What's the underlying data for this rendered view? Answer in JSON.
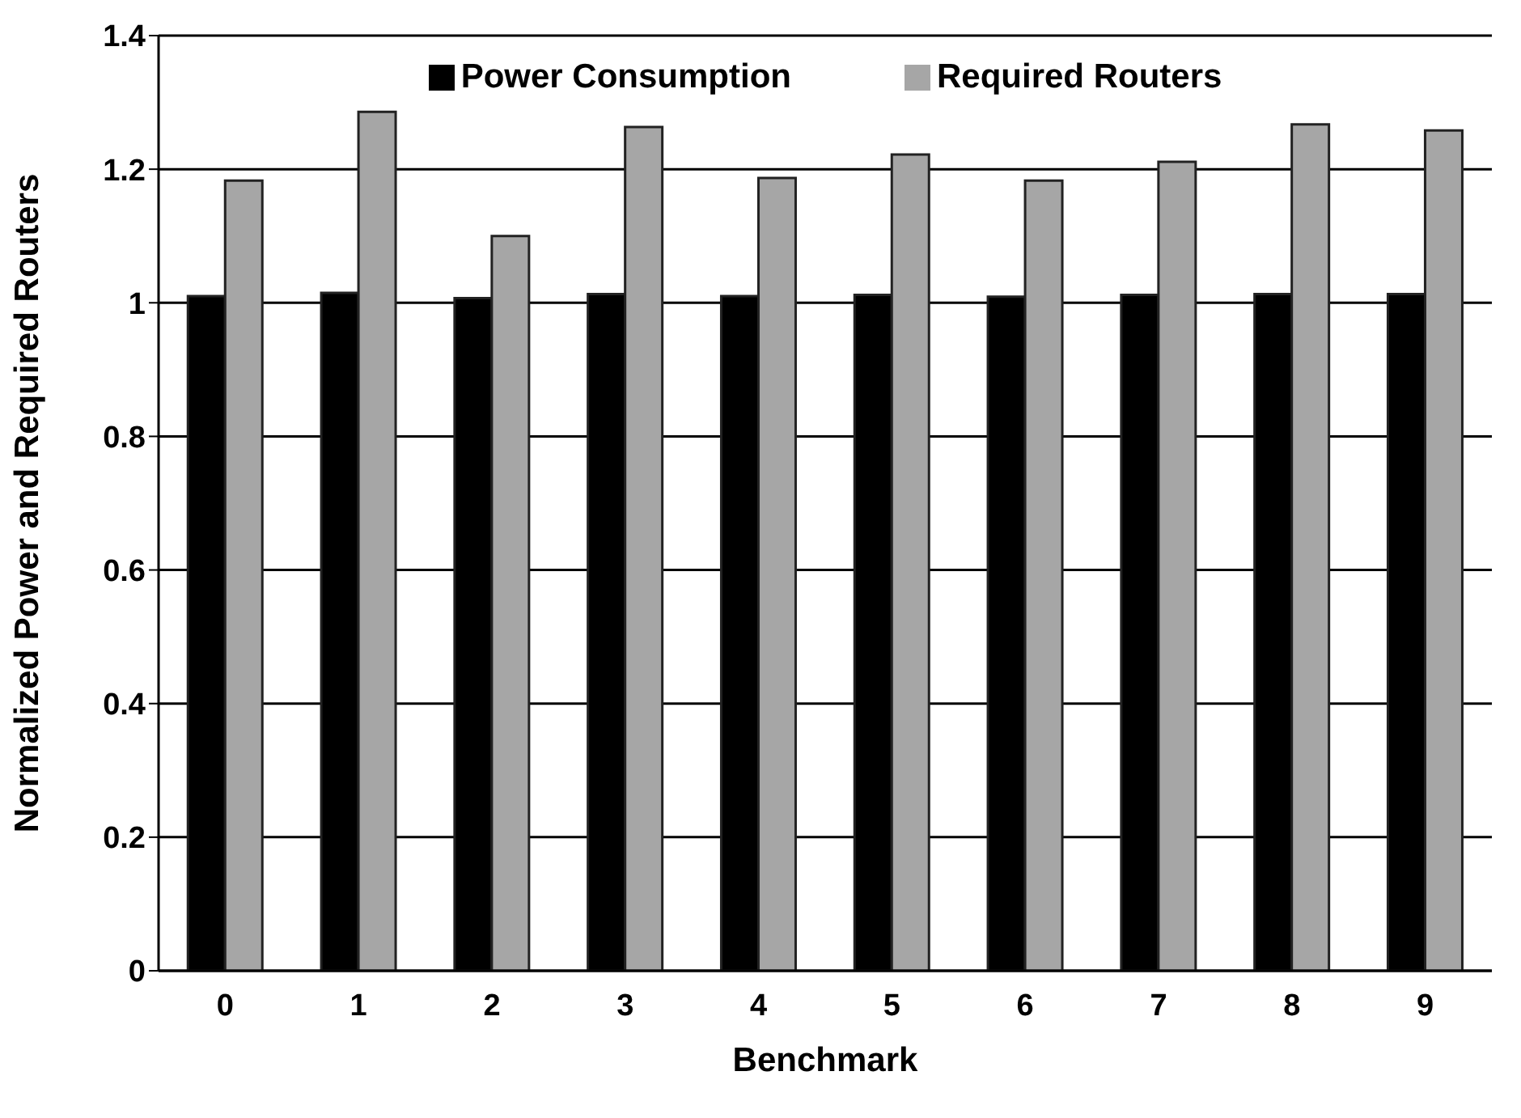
{
  "chart_data": {
    "type": "bar",
    "xlabel": "Benchmark",
    "ylabel": "Normalized Power and Required Routers",
    "categories": [
      "0",
      "1",
      "2",
      "3",
      "4",
      "5",
      "6",
      "7",
      "8",
      "9"
    ],
    "series": [
      {
        "name": "Power Consumption",
        "color": "#000000",
        "values": [
          1.01,
          1.015,
          1.007,
          1.013,
          1.01,
          1.012,
          1.009,
          1.012,
          1.013,
          1.013
        ]
      },
      {
        "name": "Required Routers",
        "color": "#a6a6a6",
        "values": [
          1.183,
          1.286,
          1.1,
          1.263,
          1.187,
          1.222,
          1.183,
          1.211,
          1.267,
          1.258
        ]
      }
    ],
    "ylim": [
      0,
      1.4
    ],
    "yticks": [
      0,
      0.2,
      0.4,
      0.6,
      0.8,
      1,
      1.2,
      1.4
    ],
    "grid": "y",
    "legend": "top"
  }
}
